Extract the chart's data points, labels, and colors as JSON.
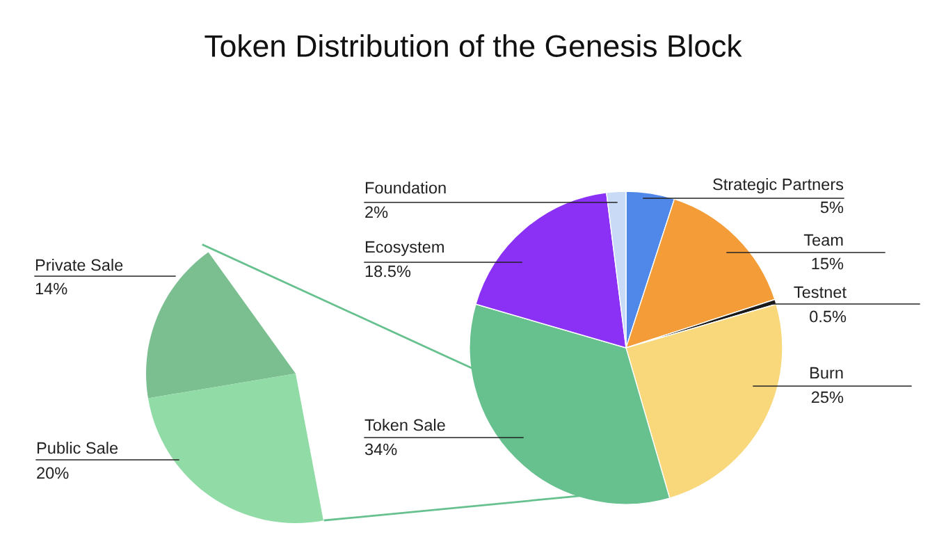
{
  "chart_data": [
    {
      "type": "pie",
      "title": "Token Distribution of the Genesis Block",
      "categories": [
        "Strategic Partners",
        "Team",
        "Testnet",
        "Burn",
        "Token Sale",
        "Ecosystem",
        "Foundation"
      ],
      "values": [
        5,
        15,
        0.5,
        25,
        34,
        18.5,
        2
      ],
      "colors": [
        "#4f88e8",
        "#f39c38",
        "#1a1a1a",
        "#f8d87a",
        "#66c18e",
        "#8b30f5",
        "#c8daf5"
      ],
      "value_labels": [
        "5%",
        "15%",
        "0.5%",
        "25%",
        "34%",
        "18.5%",
        "2%"
      ]
    },
    {
      "type": "pie",
      "categories": [
        "Private Sale",
        "Public Sale"
      ],
      "values": [
        14,
        20
      ],
      "colors": [
        "#7bbf91",
        "#90dba6"
      ],
      "value_labels": [
        "14%",
        "20%"
      ]
    }
  ]
}
